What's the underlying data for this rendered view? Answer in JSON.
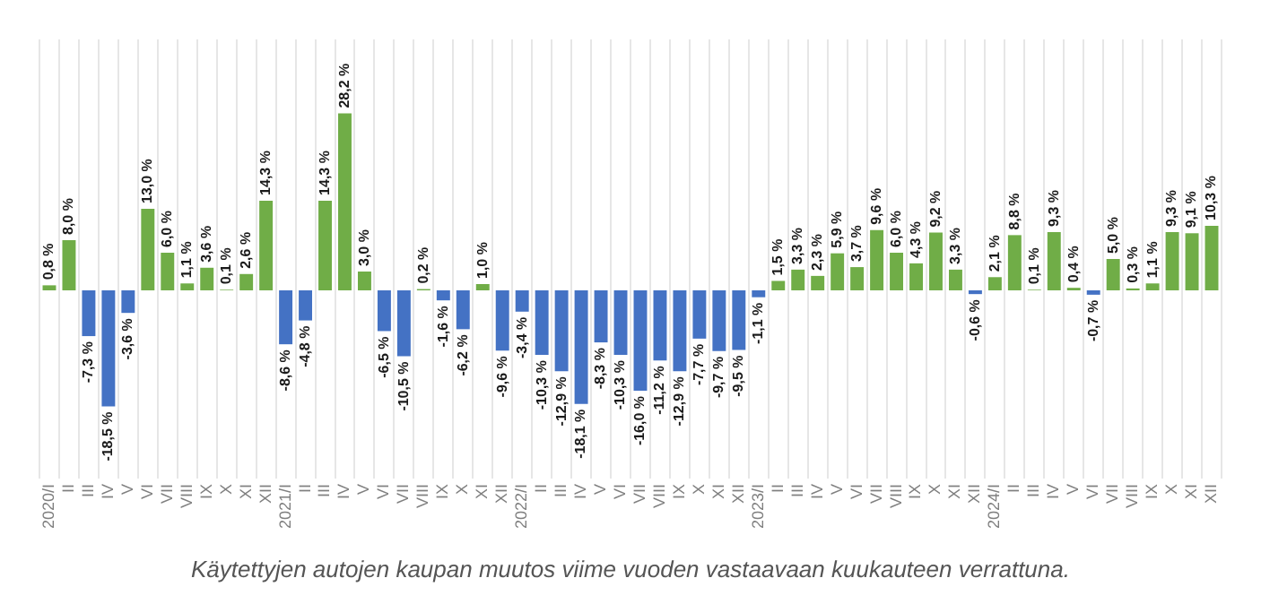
{
  "chart_data": {
    "type": "bar",
    "categories": [
      "2020/I",
      "II",
      "III",
      "IV",
      "V",
      "VI",
      "VII",
      "VIII",
      "IX",
      "X",
      "XI",
      "XII",
      "2021/I",
      "II",
      "III",
      "IV",
      "V",
      "VI",
      "VII",
      "VIII",
      "IX",
      "X",
      "XI",
      "XII",
      "2022/I",
      "II",
      "III",
      "IV",
      "V",
      "VI",
      "VII",
      "VIII",
      "IX",
      "X",
      "XI",
      "XII",
      "2023/I",
      "II",
      "III",
      "IV",
      "V",
      "VI",
      "VII",
      "VIII",
      "IX",
      "X",
      "XI",
      "XII",
      "2024/I",
      "II",
      "III",
      "IV",
      "V",
      "VI",
      "VII",
      "VIII",
      "IX",
      "X",
      "XI",
      "XII"
    ],
    "values": [
      0.8,
      8.0,
      -7.3,
      -18.5,
      -3.6,
      13.0,
      6.0,
      1.1,
      3.6,
      0.1,
      2.6,
      14.3,
      -8.6,
      -4.8,
      14.3,
      28.2,
      3.0,
      -6.5,
      -10.5,
      0.2,
      -1.6,
      -6.2,
      1.0,
      -9.6,
      -3.4,
      -10.3,
      -12.9,
      -18.1,
      -8.3,
      -10.3,
      -16.0,
      -11.2,
      -12.9,
      -7.7,
      -9.7,
      -9.5,
      -1.1,
      1.5,
      3.3,
      2.3,
      5.9,
      3.7,
      9.6,
      6.0,
      4.3,
      9.2,
      3.3,
      -0.6,
      2.1,
      8.8,
      0.1,
      9.3,
      0.4,
      -0.7,
      5.0,
      0.3,
      1.1,
      9.3,
      9.1,
      10.3
    ],
    "value_labels": [
      "0,8 %",
      "8,0 %",
      "-7,3 %",
      "-18,5 %",
      "-3,6 %",
      "13,0 %",
      "6,0 %",
      "1,1 %",
      "3,6 %",
      "0,1 %",
      "2,6 %",
      "14,3 %",
      "-8,6 %",
      "-4,8 %",
      "14,3 %",
      "28,2 %",
      "3,0 %",
      "-6,5 %",
      "-10,5 %",
      "0,2 %",
      "-1,6 %",
      "-6,2 %",
      "1,0 %",
      "-9,6 %",
      "-3,4 %",
      "-10,3 %",
      "-12,9 %",
      "-18,1 %",
      "-8,3 %",
      "-10,3 %",
      "-16,0 %",
      "-11,2 %",
      "-12,9 %",
      "-7,7 %",
      "-9,7 %",
      "-9,5 %",
      "-1,1 %",
      "1,5 %",
      "3,3 %",
      "2,3 %",
      "5,9 %",
      "3,7 %",
      "9,6 %",
      "6,0 %",
      "4,3 %",
      "9,2 %",
      "3,3 %",
      "-0,6 %",
      "2,1 %",
      "8,8 %",
      "0,1 %",
      "9,3 %",
      "0,4 %",
      "-0,7 %",
      "5,0 %",
      "0,3 %",
      "1,1 %",
      "9,3 %",
      "9,1 %",
      "10,3 %"
    ],
    "colors": [
      "#70ad47",
      "#70ad47",
      "#4472c4",
      "#4472c4",
      "#4472c4",
      "#70ad47",
      "#70ad47",
      "#70ad47",
      "#70ad47",
      "#70ad47",
      "#70ad47",
      "#70ad47",
      "#4472c4",
      "#4472c4",
      "#70ad47",
      "#70ad47",
      "#70ad47",
      "#4472c4",
      "#4472c4",
      "#70ad47",
      "#4472c4",
      "#4472c4",
      "#70ad47",
      "#4472c4",
      "#4472c4",
      "#4472c4",
      "#4472c4",
      "#4472c4",
      "#4472c4",
      "#4472c4",
      "#4472c4",
      "#4472c4",
      "#4472c4",
      "#4472c4",
      "#4472c4",
      "#4472c4",
      "#4472c4",
      "#70ad47",
      "#70ad47",
      "#70ad47",
      "#70ad47",
      "#70ad47",
      "#70ad47",
      "#70ad47",
      "#70ad47",
      "#70ad47",
      "#70ad47",
      "#4472c4",
      "#70ad47",
      "#70ad47",
      "#70ad47",
      "#70ad47",
      "#70ad47",
      "#4472c4",
      "#70ad47",
      "#70ad47",
      "#70ad47",
      "#70ad47",
      "#70ad47",
      "#70ad47"
    ],
    "grid": "x",
    "tick_labels": "x",
    "annotations": [
      "Käytettyjen autojen kaupan muutos viime vuoden vastaavaan kuukauteen verrattuna."
    ]
  }
}
